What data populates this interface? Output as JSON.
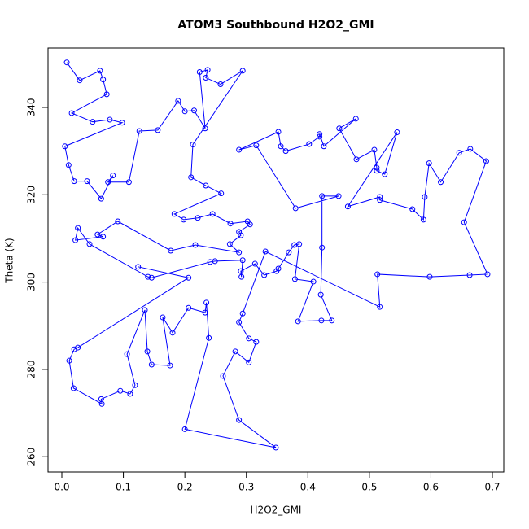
{
  "chart_data": {
    "type": "line",
    "markers": true,
    "title": "ATOM3 Southbound H2O2_GMI",
    "x_label": "H2O2_GMI",
    "y_label": "Theta (K)",
    "series": [
      {
        "color": "#0000ff",
        "x": [
          0.008,
          0.029,
          0.062,
          0.067,
          0.073,
          0.016,
          0.05,
          0.078,
          0.098,
          0.005,
          0.011,
          0.02,
          0.041,
          0.064,
          0.083,
          0.075,
          0.109,
          0.126,
          0.156,
          0.189,
          0.2,
          0.215,
          0.233,
          0.224,
          0.237,
          0.234,
          0.258,
          0.294,
          0.213,
          0.21,
          0.234,
          0.259,
          0.183,
          0.198,
          0.221,
          0.245,
          0.274,
          0.302,
          0.306,
          0.288,
          0.291,
          0.273,
          0.288,
          0.217,
          0.177,
          0.091,
          0.058,
          0.067,
          0.022,
          0.026,
          0.045,
          0.14,
          0.146,
          0.241,
          0.249,
          0.294,
          0.292,
          0.291,
          0.314,
          0.329,
          0.349,
          0.352,
          0.369,
          0.378,
          0.386,
          0.379,
          0.409,
          0.384,
          0.422,
          0.439,
          0.421,
          0.423,
          0.423,
          0.45,
          0.38,
          0.316,
          0.288,
          0.352,
          0.356,
          0.364,
          0.402,
          0.419,
          0.419,
          0.426,
          0.478,
          0.451,
          0.479,
          0.508,
          0.512,
          0.512,
          0.525,
          0.545,
          0.465,
          0.517,
          0.517,
          0.57,
          0.588,
          0.59,
          0.597,
          0.616,
          0.646,
          0.664,
          0.69,
          0.654,
          0.692,
          0.663,
          0.598,
          0.513,
          0.517,
          0.331,
          0.294,
          0.288,
          0.304,
          0.316,
          0.304,
          0.282,
          0.262,
          0.288,
          0.348,
          0.2,
          0.239,
          0.235,
          0.233,
          0.206,
          0.18,
          0.164,
          0.176,
          0.146,
          0.139,
          0.135,
          0.106,
          0.119,
          0.111,
          0.095,
          0.064,
          0.065,
          0.019,
          0.012,
          0.02,
          0.026,
          0.206,
          0.124
        ],
        "values": [
          350.3,
          346.2,
          348.4,
          346.4,
          343.0,
          338.7,
          336.7,
          337.2,
          336.5,
          331.1,
          326.8,
          323.1,
          323.1,
          319.1,
          324.4,
          322.9,
          322.9,
          334.6,
          334.8,
          341.5,
          339.1,
          339.3,
          335.2,
          348.1,
          348.6,
          346.8,
          345.3,
          348.4,
          331.5,
          324.0,
          322.1,
          320.3,
          315.6,
          314.3,
          314.7,
          315.6,
          313.4,
          313.9,
          313.2,
          311.5,
          310.7,
          308.7,
          306.8,
          308.5,
          307.2,
          313.9,
          310.9,
          310.4,
          309.6,
          312.4,
          308.7,
          301.2,
          301.0,
          304.6,
          304.8,
          305.0,
          301.2,
          302.5,
          304.2,
          301.6,
          302.5,
          303.1,
          306.8,
          308.5,
          308.7,
          300.7,
          300.1,
          291.0,
          291.2,
          291.2,
          297.1,
          307.9,
          319.7,
          319.7,
          316.9,
          331.3,
          330.3,
          334.4,
          331.1,
          330.0,
          331.6,
          333.3,
          333.9,
          331.1,
          337.4,
          335.2,
          328.1,
          330.3,
          326.2,
          325.5,
          324.7,
          334.3,
          317.3,
          319.5,
          318.8,
          316.7,
          314.3,
          319.5,
          327.2,
          322.9,
          329.6,
          330.5,
          327.7,
          313.7,
          301.8,
          301.6,
          301.2,
          301.8,
          294.3,
          307.0,
          292.8,
          290.8,
          287.1,
          286.3,
          281.6,
          284.1,
          278.5,
          268.4,
          262.1,
          266.3,
          287.2,
          295.3,
          293.0,
          294.1,
          288.4,
          291.9,
          280.9,
          281.1,
          284.1,
          293.6,
          283.5,
          276.4,
          274.4,
          275.1,
          273.2,
          272.1,
          275.7,
          282.0,
          284.6,
          285.0,
          301.0,
          303.5
        ]
      }
    ],
    "xlim": [
      -0.0225,
      0.7185
    ],
    "ylim": [
      256.5,
      353.6
    ],
    "xticks": [
      {
        "value": 0,
        "label": "0.0"
      },
      0.1,
      0.2,
      0.3,
      0.4,
      0.5,
      0.6,
      0.7
    ],
    "yticks": [
      260,
      280,
      300,
      320,
      340
    ]
  }
}
